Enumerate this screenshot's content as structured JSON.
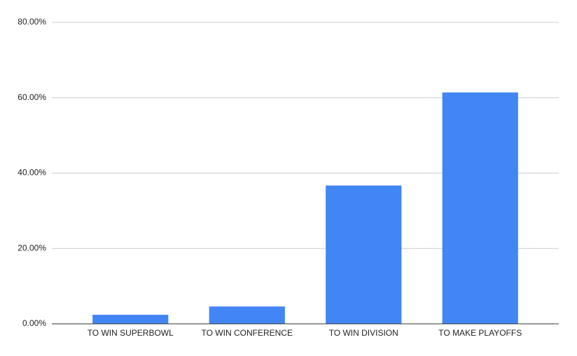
{
  "chart_data": {
    "type": "bar",
    "categories": [
      "TO WIN SUPERBOWL",
      "TO WIN CONFERENCE",
      "TO WIN DIVISION",
      "TO MAKE PLAYOFFS"
    ],
    "values": [
      2.4,
      4.6,
      36.7,
      61.4
    ],
    "color": "#4285f4",
    "ylim": [
      0,
      80
    ],
    "yticks": [
      {
        "value": 0,
        "label": "0.00%"
      },
      {
        "value": 20,
        "label": "20.00%"
      },
      {
        "value": 40,
        "label": "40.00%"
      },
      {
        "value": 60,
        "label": "60.00%"
      },
      {
        "value": 80,
        "label": "80.00%"
      }
    ],
    "grid": true
  }
}
